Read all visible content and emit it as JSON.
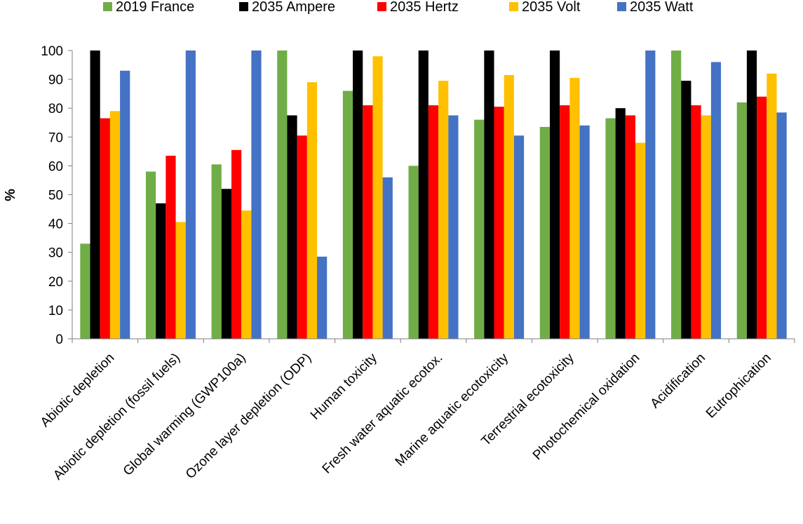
{
  "chart_data": {
    "type": "bar",
    "title": "",
    "xlabel": "",
    "ylabel": "%",
    "ylim": [
      0,
      100
    ],
    "yticks": [
      0,
      10,
      20,
      30,
      40,
      50,
      60,
      70,
      80,
      90,
      100
    ],
    "grid": false,
    "legend_position": "top",
    "categories": [
      "Abiotic depletion",
      "Abiotic depletion (fossil fuels)",
      "Global warming (GWP100a)",
      "Ozone layer depletion (ODP)",
      "Human toxicity",
      "Fresh water aquatic ecotox.",
      "Marine aquatic ecotoxicity",
      "Terrestrial ecotoxicity",
      "Photochemical oxidation",
      "Acidification",
      "Eutrophication"
    ],
    "series": [
      {
        "name": "2019 France",
        "color": "#70AD47",
        "values": [
          33,
          58,
          60.5,
          100,
          86,
          60,
          76,
          73.5,
          76.5,
          100,
          82
        ]
      },
      {
        "name": "2035 Ampere",
        "color": "#000000",
        "values": [
          100,
          47,
          52,
          77.5,
          100,
          100,
          100,
          100,
          80,
          89.5,
          100
        ]
      },
      {
        "name": "2035 Hertz",
        "color": "#FF0000",
        "values": [
          76.5,
          63.5,
          65.5,
          70.5,
          81,
          81,
          80.5,
          81,
          77.5,
          81,
          84
        ]
      },
      {
        "name": "2035 Volt",
        "color": "#FFC000",
        "values": [
          79,
          40.5,
          44.5,
          89,
          98,
          89.5,
          91.5,
          90.5,
          68,
          77.5,
          92
        ]
      },
      {
        "name": "2035 Watt",
        "color": "#4472C4",
        "values": [
          93,
          100,
          100,
          28.5,
          56,
          77.5,
          70.5,
          74,
          100,
          96,
          78.5
        ]
      }
    ]
  }
}
